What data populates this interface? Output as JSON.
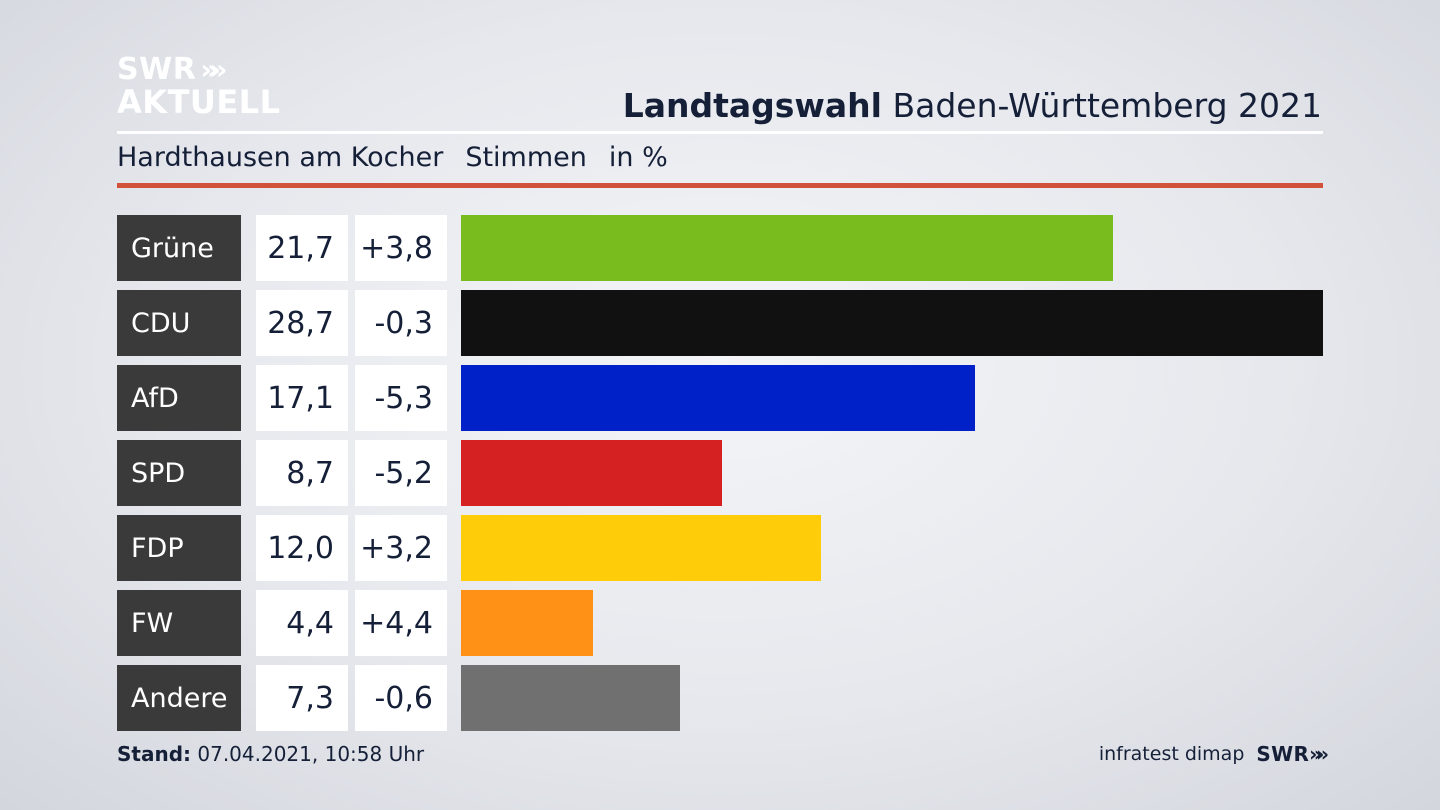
{
  "logo": {
    "line1": "SWR",
    "line2": "AKTUELL",
    "chevrons": "»»"
  },
  "title": {
    "bold": "Landtagswahl",
    "rest": " Baden-Württemberg 2021"
  },
  "subtitle": {
    "place": "Hardthausen am Kocher",
    "measure": "Stimmen",
    "unit": "in %"
  },
  "chart_data": {
    "type": "bar",
    "orientation": "horizontal",
    "categories": [
      "Grüne",
      "CDU",
      "AfD",
      "SPD",
      "FDP",
      "FW",
      "Andere"
    ],
    "values": [
      21.7,
      28.7,
      17.1,
      8.7,
      12.0,
      4.4,
      7.3
    ],
    "value_labels": [
      "21,7",
      "28,7",
      "17,1",
      "8,7",
      "12,0",
      "4,4",
      "7,3"
    ],
    "change_labels": [
      "+3,8",
      "-0,3",
      "-5,3",
      "-5,2",
      "+3,2",
      "+4,4",
      "-0,6"
    ],
    "colors": [
      "#78bc1e",
      "#111111",
      "#0021c8",
      "#d52121",
      "#ffcc0a",
      "#ff9117",
      "#707070"
    ],
    "xlim": [
      0,
      28.7
    ],
    "grid": false
  },
  "footer": {
    "stand_label": "Stand:",
    "stand_value": " 07.04.2021, 10:58 Uhr",
    "source": "infratest dimap",
    "brand": "SWR",
    "brand_chevrons": "»»"
  }
}
